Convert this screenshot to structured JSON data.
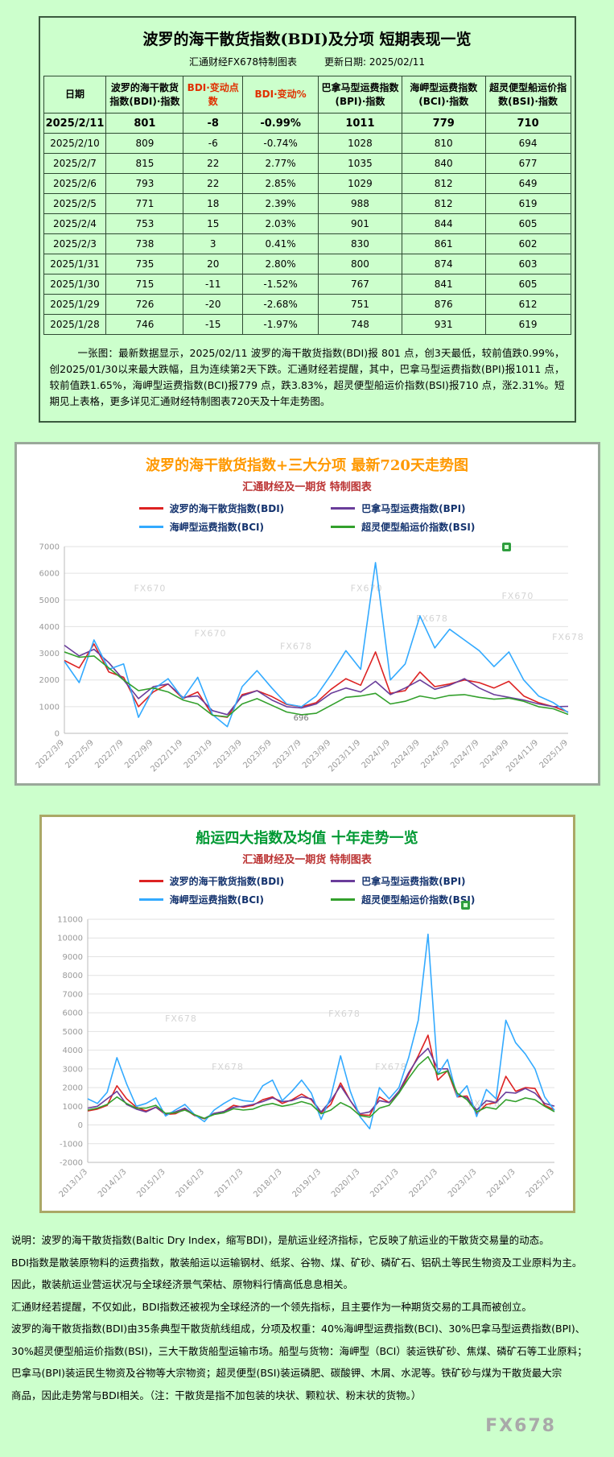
{
  "report": {
    "title": "波罗的海干散货指数(BDI)及分项 短期表现一览",
    "source": "汇通财经FX678特制图表",
    "update_date": "更新日期: 2025/02/11",
    "headers": [
      "日期",
      "波罗的海干散货指数(BDI)·指数",
      "BDI·变动点数",
      "BDI·变动%",
      "巴拿马型运费指数(BPI)·指数",
      "海岬型运费指数(BCI)·指数",
      "超灵便型船运价指数(BSI)·指数"
    ],
    "rows": [
      [
        "2025/2/11",
        "801",
        "-8",
        "-0.99%",
        "1011",
        "779",
        "710"
      ],
      [
        "2025/2/10",
        "809",
        "-6",
        "-0.74%",
        "1028",
        "810",
        "694"
      ],
      [
        "2025/2/7",
        "815",
        "22",
        "2.77%",
        "1035",
        "840",
        "677"
      ],
      [
        "2025/2/6",
        "793",
        "22",
        "2.85%",
        "1029",
        "812",
        "649"
      ],
      [
        "2025/2/5",
        "771",
        "18",
        "2.39%",
        "988",
        "812",
        "619"
      ],
      [
        "2025/2/4",
        "753",
        "15",
        "2.03%",
        "901",
        "844",
        "605"
      ],
      [
        "2025/2/3",
        "738",
        "3",
        "0.41%",
        "830",
        "861",
        "602"
      ],
      [
        "2025/1/31",
        "735",
        "20",
        "2.80%",
        "800",
        "874",
        "603"
      ],
      [
        "2025/1/30",
        "715",
        "-11",
        "-1.52%",
        "767",
        "841",
        "605"
      ],
      [
        "2025/1/29",
        "726",
        "-20",
        "-2.68%",
        "751",
        "876",
        "612"
      ],
      [
        "2025/1/28",
        "746",
        "-15",
        "-1.97%",
        "748",
        "931",
        "619"
      ]
    ],
    "note": "一张图：最新数据显示，2025/02/11 波罗的海干散货指数(BDI)报 801 点，创3天最低，较前值跌0.99%，创2025/01/30以来最大跌幅，且为连续第2天下跌。汇通财经若提醒，其中，巴拿马型运费指数(BPI)报1011 点，较前值跌1.65%，海岬型运费指数(BCI)报779 点，跌3.83%，超灵便型船运价指数(BSI)报710 点，涨2.31%。短期见上表格，更多详见汇通财经特制图表720天及十年走势图。"
  },
  "chart_data": [
    {
      "type": "line",
      "id": "chart720",
      "title": "波罗的海干散货指数+三大分项 最新720天走势图",
      "subtitle": "汇通财经及一期货 特制图表",
      "title_color": "#ff9900",
      "legend_position": "top",
      "grid": true,
      "ylim": [
        0,
        7000
      ],
      "ytick_step": 1000,
      "xticklabels": [
        "2022/3/9",
        "2022/5/9",
        "2022/7/9",
        "2022/9/9",
        "2022/11/9",
        "2023/1/9",
        "2023/3/9",
        "2023/5/9",
        "2023/7/9",
        "2023/9/9",
        "2023/11/9",
        "2024/1/9",
        "2024/3/9",
        "2024/5/9",
        "2024/7/9",
        "2024/9/9",
        "2024/11/9",
        "2025/1/9"
      ],
      "series": [
        {
          "name": "波罗的海干散货指数(BDI)",
          "color": "#dd2222",
          "values": [
            2730,
            2450,
            3350,
            2300,
            2100,
            1000,
            1550,
            1850,
            1300,
            1550,
            680,
            600,
            1450,
            1600,
            1380,
            1080,
            1000,
            1150,
            1650,
            2050,
            1800,
            3050,
            1500,
            1600,
            2300,
            1750,
            1850,
            2000,
            1900,
            1700,
            1950,
            1400,
            1150,
            1000,
            801
          ]
        },
        {
          "name": "巴拿马型运费指数(BPI)",
          "color": "#6a3d9a",
          "values": [
            3300,
            2900,
            3150,
            2650,
            2000,
            1300,
            1750,
            1850,
            1350,
            1400,
            850,
            700,
            1400,
            1600,
            1250,
            1000,
            950,
            1100,
            1500,
            1700,
            1550,
            1950,
            1450,
            1700,
            2000,
            1650,
            1800,
            2050,
            1700,
            1450,
            1350,
            1250,
            1100,
            1000,
            1011
          ]
        },
        {
          "name": "海岬型运费指数(BCI)",
          "color": "#33aaff",
          "values": [
            2700,
            1900,
            3500,
            2400,
            2600,
            600,
            1650,
            2050,
            1300,
            2100,
            700,
            250,
            1750,
            2350,
            1700,
            1100,
            1000,
            1400,
            2200,
            3100,
            2400,
            6400,
            2000,
            2600,
            4400,
            3200,
            3900,
            3500,
            3100,
            2500,
            3050,
            2000,
            1400,
            1150,
            779
          ]
        },
        {
          "name": "超灵便型船运价指数(BSI)",
          "color": "#33a02c",
          "values": [
            3050,
            2850,
            2900,
            2450,
            2000,
            1600,
            1700,
            1550,
            1250,
            1100,
            680,
            620,
            1100,
            1300,
            1050,
            800,
            696,
            750,
            1050,
            1350,
            1400,
            1500,
            1100,
            1200,
            1400,
            1300,
            1420,
            1450,
            1350,
            1280,
            1320,
            1200,
            1000,
            920,
            710
          ]
        }
      ],
      "annotations": [
        {
          "text": "696",
          "x": 0.47,
          "y": 480
        }
      ],
      "watermarks": [
        {
          "text": "FX670",
          "x": 0.17,
          "y": 0.24
        },
        {
          "text": "FX670",
          "x": 0.6,
          "y": 0.24
        },
        {
          "text": "FX670",
          "x": 0.9,
          "y": 0.28
        },
        {
          "text": "FX678",
          "x": 0.73,
          "y": 0.4
        },
        {
          "text": "FX670",
          "x": 0.29,
          "y": 0.48
        },
        {
          "text": "FX678",
          "x": 0.46,
          "y": 0.55
        },
        {
          "text": "FX678",
          "x": 1.0,
          "y": 0.5
        }
      ]
    },
    {
      "type": "line",
      "id": "chart10y",
      "title": "船运四大指数及均值 十年走势一览",
      "subtitle": "汇通财经及一期货 特制图表",
      "title_color": "#009933",
      "legend_position": "top",
      "grid": true,
      "ylim": [
        -2000,
        11000
      ],
      "ytick_step": 1000,
      "xticklabels": [
        "2013/1/3",
        "2014/1/3",
        "2015/1/3",
        "2016/1/3",
        "2017/1/3",
        "2018/1/3",
        "2019/1/3",
        "2020/1/3",
        "2021/1/3",
        "2022/1/3",
        "2023/1/3",
        "2024/1/3",
        "2025/1/3"
      ],
      "series": [
        {
          "name": "波罗的海干散货指数(BDI)",
          "color": "#dd2222",
          "values": [
            750,
            850,
            1050,
            2100,
            1400,
            950,
            750,
            950,
            560,
            600,
            850,
            500,
            330,
            620,
            720,
            1050,
            950,
            1050,
            1350,
            1500,
            1150,
            1350,
            1650,
            1350,
            650,
            1100,
            2250,
            1300,
            550,
            520,
            1500,
            1200,
            1700,
            2700,
            3700,
            4800,
            2400,
            2900,
            1500,
            1550,
            600,
            1100,
            1200,
            2600,
            1800,
            2000,
            1950,
            1050,
            801
          ]
        },
        {
          "name": "巴拿马型运费指数(BPI)",
          "color": "#6a3d9a",
          "values": [
            900,
            1000,
            1400,
            1800,
            1100,
            850,
            700,
            950,
            600,
            700,
            900,
            520,
            350,
            620,
            720,
            950,
            1000,
            1100,
            1250,
            1450,
            1250,
            1300,
            1500,
            1400,
            700,
            1300,
            2100,
            1300,
            600,
            700,
            1300,
            1200,
            1800,
            2800,
            3600,
            4100,
            3000,
            3000,
            1600,
            1450,
            800,
            1300,
            1200,
            1750,
            1700,
            1950,
            1700,
            1150,
            1011
          ]
        },
        {
          "name": "海岬型运费指数(BCI)",
          "color": "#33aaff",
          "values": [
            1400,
            1150,
            1750,
            3600,
            2200,
            1000,
            1150,
            1450,
            480,
            800,
            1100,
            550,
            180,
            800,
            1150,
            1450,
            1300,
            1250,
            2100,
            2400,
            1300,
            1800,
            2400,
            1700,
            300,
            1500,
            3700,
            1800,
            450,
            -200,
            2000,
            1400,
            2000,
            3600,
            5600,
            10200,
            2700,
            3500,
            1500,
            2100,
            450,
            1900,
            1400,
            5600,
            4400,
            3800,
            3000,
            1500,
            779
          ]
        },
        {
          "name": "超灵便型船运价指数(BSI)",
          "color": "#33a02c",
          "values": [
            800,
            900,
            1100,
            1500,
            1150,
            900,
            900,
            1050,
            620,
            650,
            800,
            550,
            350,
            560,
            650,
            870,
            800,
            850,
            1050,
            1150,
            1000,
            1100,
            1250,
            1100,
            600,
            800,
            1200,
            950,
            500,
            420,
            900,
            1050,
            1700,
            2500,
            3200,
            3650,
            2700,
            2900,
            1700,
            1350,
            700,
            950,
            850,
            1350,
            1250,
            1450,
            1350,
            1000,
            710
          ]
        }
      ],
      "annotations": [],
      "watermarks": [
        {
          "text": "FX678",
          "x": 0.2,
          "y": 0.42
        },
        {
          "text": "FX678",
          "x": 0.55,
          "y": 0.4
        },
        {
          "text": "FX678",
          "x": 0.3,
          "y": 0.62
        },
        {
          "text": "FX678",
          "x": 0.65,
          "y": 0.62
        },
        {
          "text": "FX678",
          "x": 0.85,
          "y": 0.77
        }
      ]
    }
  ],
  "footer": {
    "lines": [
      "说明：波罗的海干散货指数(Baltic Dry Index，缩写BDI)，是航运业经济指标，它反映了航运业的干散货交易量的动态。",
      "BDI指数是散装原物料的运费指数，散装船运以运输钢材、纸浆、谷物、煤、矿砂、磷矿石、铝矾土等民生物资及工业原料为主。",
      "因此，散装航运业营运状况与全球经济景气荣枯、原物料行情高低息息相关。",
      "汇通财经若提醒，不仅如此，BDI指数还被视为全球经济的一个领先指标，且主要作为一种期货交易的工具而被创立。",
      "波罗的海干散货指数(BDI)由35条典型干散货航线组成，分项及权重：40%海岬型运费指数(BCI)、30%巴拿马型运费指数(BPI)、",
      "30%超灵便型船运价指数(BSI)，三大干散货船型运输市场。船型与货物：海岬型（BCI）装运铁矿砂、焦煤、磷矿石等工业原料；",
      "巴拿马(BPI)装运民生物资及谷物等大宗物资；超灵便型(BSI)装运磷肥、碳酸钾、木屑、水泥等。铁矿砂与煤为干散货最大宗",
      "商品，因此走势常与BDI相关。（注：干散货是指不加包装的块状、颗粒状、粉末状的货物。）"
    ],
    "watermark": "FX678"
  }
}
